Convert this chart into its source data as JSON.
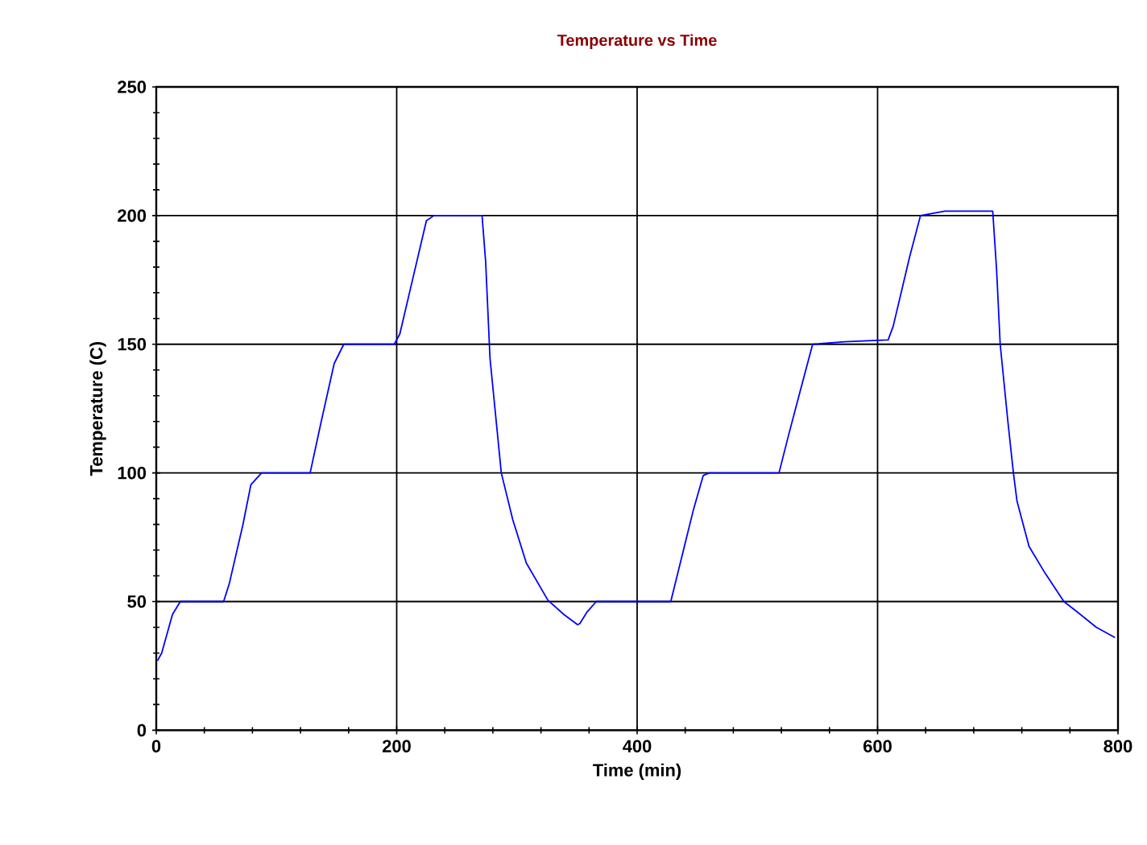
{
  "chart_data": {
    "type": "line",
    "title": "Temperature vs Time",
    "xlabel": "Time (min)",
    "ylabel": "Temperature (C)",
    "xlim": [
      0,
      800
    ],
    "ylim": [
      0,
      250
    ],
    "xticks": [
      0,
      200,
      400,
      600,
      800
    ],
    "yticks": [
      0,
      50,
      100,
      150,
      200,
      250
    ],
    "grid": true,
    "line_style": "solid",
    "marker": "none",
    "series": [
      {
        "color": "#0000ff",
        "x": [
          1,
          4.5,
          13.5,
          20,
          56,
          60.6,
          72,
          78.7,
          87.6,
          128,
          137,
          148,
          156,
          198,
          202.6,
          224.7,
          231,
          271,
          274,
          277.6,
          287,
          296.5,
          307.8,
          325.8,
          339,
          350.5,
          352.4,
          358.4,
          366,
          428,
          438,
          447,
          455,
          460,
          518,
          525.6,
          534.6,
          546,
          573,
          608.8,
          613,
          626.7,
          635.7,
          656,
          695.8,
          699,
          702,
          708.5,
          713,
          716,
          726,
          739.4,
          755,
          766,
          782,
          797.5
        ],
        "values": [
          27,
          30,
          45,
          50,
          50,
          56.7,
          79.7,
          95.4,
          100,
          100,
          119.5,
          142.5,
          150,
          150,
          154,
          198,
          200,
          200,
          182,
          144.6,
          100,
          81.9,
          65,
          50.5,
          45,
          41,
          41.5,
          46,
          50,
          50,
          69,
          86,
          99,
          100,
          100,
          114,
          130,
          150,
          151,
          151.7,
          157,
          184,
          200,
          201.7,
          201.7,
          179,
          150,
          119.5,
          100,
          89,
          71.4,
          61,
          50,
          46,
          40,
          36
        ]
      }
    ]
  }
}
